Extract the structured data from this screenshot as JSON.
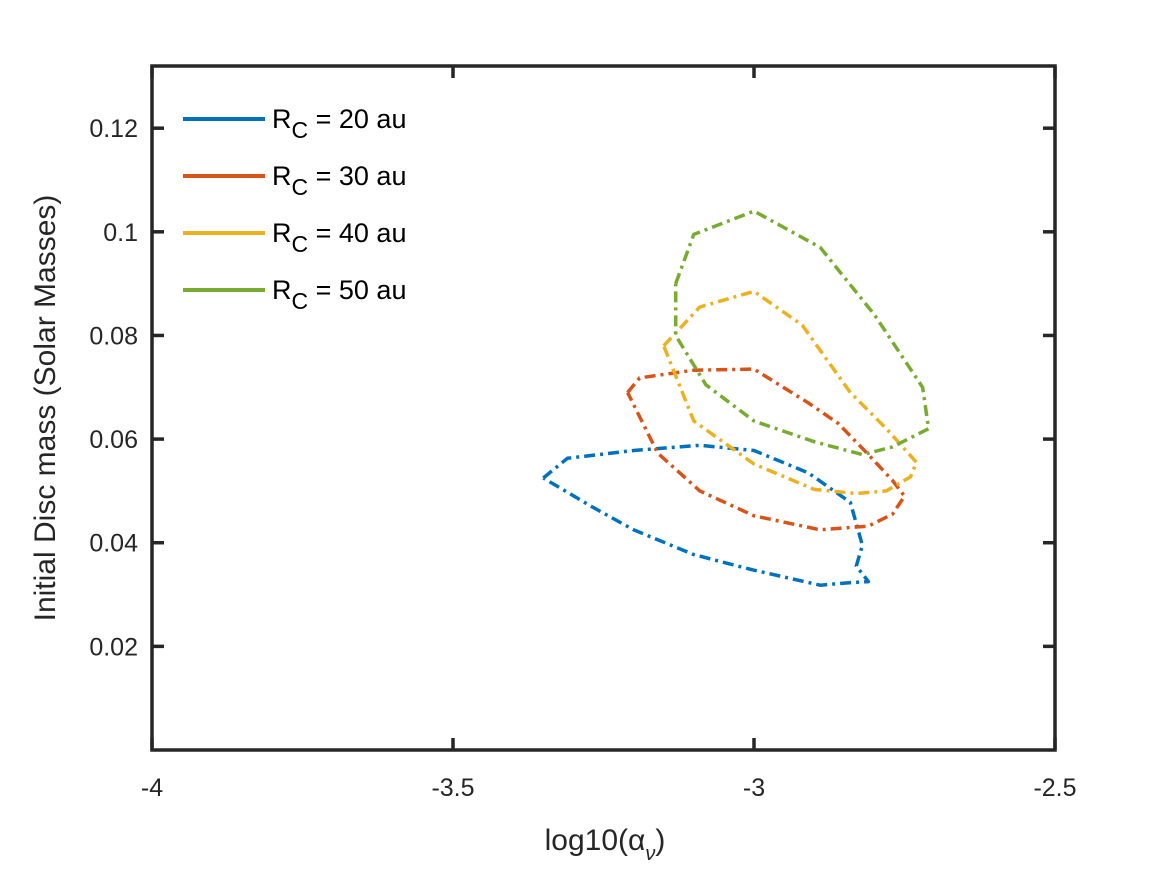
{
  "chart_data": {
    "type": "line",
    "subtype": "contour",
    "title": "",
    "xlabel": "log10(α",
    "xlabel_subscript": "ν",
    "xlabel_close": ")",
    "ylabel": "Initial Disc mass (Solar Masses)",
    "xlim": [
      -4,
      -2.5
    ],
    "ylim": [
      0,
      0.132
    ],
    "xticks": [
      -4,
      -3.5,
      -3,
      -2.5
    ],
    "xtick_labels": [
      "-4",
      "-3.5",
      "-3",
      "-2.5"
    ],
    "yticks": [
      0.02,
      0.04,
      0.06,
      0.08,
      0.1,
      0.12
    ],
    "ytick_labels": [
      "0.02",
      "0.04",
      "0.06",
      "0.08",
      "0.1",
      "0.12"
    ],
    "grid": false,
    "legend_position": "top-left",
    "line_style": "dash-dot",
    "series": [
      {
        "name_main": "R",
        "name_sub": "C",
        "name_rest": " = 20 au",
        "color": "#0072BD",
        "points": [
          [
            -3.35,
            0.0525
          ],
          [
            -3.31,
            0.0563
          ],
          [
            -3.2,
            0.0578
          ],
          [
            -3.09,
            0.0588
          ],
          [
            -3.0,
            0.0578
          ],
          [
            -2.91,
            0.0535
          ],
          [
            -2.84,
            0.0478
          ],
          [
            -2.82,
            0.0395
          ],
          [
            -2.83,
            0.0355
          ],
          [
            -2.81,
            0.0325
          ],
          [
            -2.85,
            0.0322
          ],
          [
            -2.89,
            0.0318
          ],
          [
            -3.0,
            0.0347
          ],
          [
            -3.1,
            0.0377
          ],
          [
            -3.2,
            0.0425
          ],
          [
            -3.27,
            0.047
          ],
          [
            -3.35,
            0.0525
          ]
        ]
      },
      {
        "name_main": "R",
        "name_sub": "C",
        "name_rest": " = 30 au",
        "color": "#D95319",
        "points": [
          [
            -3.21,
            0.069
          ],
          [
            -3.19,
            0.0718
          ],
          [
            -3.1,
            0.0733
          ],
          [
            -3.0,
            0.0735
          ],
          [
            -2.91,
            0.067
          ],
          [
            -2.86,
            0.063
          ],
          [
            -2.81,
            0.057
          ],
          [
            -2.77,
            0.052
          ],
          [
            -2.75,
            0.049
          ],
          [
            -2.77,
            0.0455
          ],
          [
            -2.81,
            0.0432
          ],
          [
            -2.89,
            0.0425
          ],
          [
            -3.0,
            0.0452
          ],
          [
            -3.09,
            0.05
          ],
          [
            -3.16,
            0.0573
          ],
          [
            -3.21,
            0.069
          ]
        ]
      },
      {
        "name_main": "R",
        "name_sub": "C",
        "name_rest": " = 40 au",
        "color": "#EDB120",
        "points": [
          [
            -3.15,
            0.078
          ],
          [
            -3.09,
            0.0855
          ],
          [
            -3.0,
            0.0885
          ],
          [
            -2.92,
            0.082
          ],
          [
            -2.84,
            0.069
          ],
          [
            -2.78,
            0.062
          ],
          [
            -2.73,
            0.0555
          ],
          [
            -2.74,
            0.0527
          ],
          [
            -2.78,
            0.05
          ],
          [
            -2.83,
            0.0495
          ],
          [
            -2.9,
            0.0503
          ],
          [
            -3.0,
            0.0552
          ],
          [
            -3.1,
            0.0635
          ],
          [
            -3.15,
            0.078
          ]
        ]
      },
      {
        "name_main": "R",
        "name_sub": "C",
        "name_rest": " = 50 au",
        "color": "#77AC30",
        "points": [
          [
            -3.13,
            0.09
          ],
          [
            -3.1,
            0.0995
          ],
          [
            -3.0,
            0.104
          ],
          [
            -2.89,
            0.097
          ],
          [
            -2.8,
            0.084
          ],
          [
            -2.72,
            0.07
          ],
          [
            -2.71,
            0.062
          ],
          [
            -2.77,
            0.0585
          ],
          [
            -2.82,
            0.057
          ],
          [
            -2.9,
            0.0595
          ],
          [
            -3.0,
            0.0635
          ],
          [
            -3.08,
            0.0705
          ],
          [
            -3.13,
            0.08
          ],
          [
            -3.13,
            0.09
          ]
        ]
      }
    ]
  }
}
